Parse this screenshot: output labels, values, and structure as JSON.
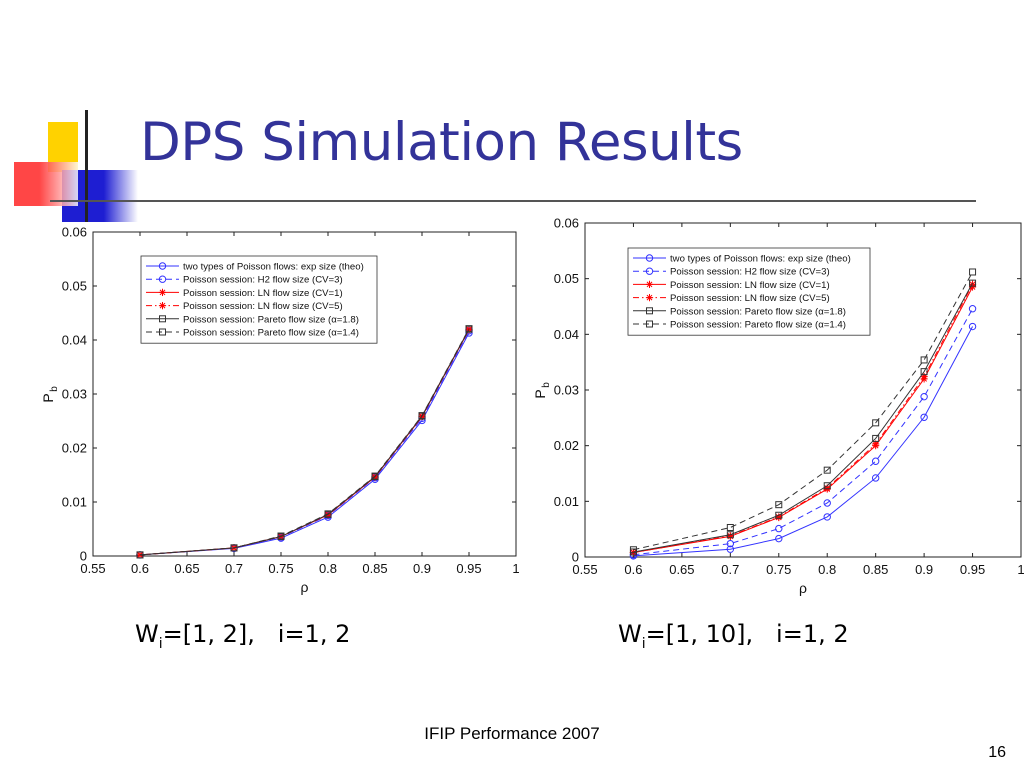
{
  "slide": {
    "title": "DPS Simulation Results",
    "footer": "IFIP Performance 2007",
    "page_number": "16",
    "colors": {
      "title": "#333399",
      "deco_yellow": "#FFD200",
      "deco_blue": "#1E1ED2",
      "deco_red": "#FF3232"
    }
  },
  "captions": [
    {
      "prefix": "W",
      "sub": "i",
      "rest": "=[1, 2],   i=1, 2"
    },
    {
      "prefix": "W",
      "sub": "i",
      "rest": "=[1, 10],   i=1, 2"
    }
  ],
  "chart_data": [
    {
      "type": "line",
      "xlabel": "ρ",
      "ylabel": "P",
      "ylabel_sub": "b",
      "xlim": [
        0.55,
        1
      ],
      "ylim": [
        0,
        0.06
      ],
      "xticks": [
        "0.55",
        "0.6",
        "0.65",
        "0.7",
        "0.75",
        "0.8",
        "0.85",
        "0.9",
        "0.95",
        "1"
      ],
      "yticks": [
        "0",
        "0.01",
        "0.02",
        "0.03",
        "0.04",
        "0.05",
        "0.06"
      ],
      "grid": false,
      "legend_placement": "top-left",
      "x": [
        0.6,
        0.7,
        0.75,
        0.8,
        0.85,
        0.9,
        0.95
      ],
      "series": [
        {
          "name": "two types of Poisson flows: exp size (theo)",
          "color": "#3333ff",
          "dash": "solid",
          "marker": "circle",
          "values": [
            0.0002,
            0.0014,
            0.0033,
            0.0072,
            0.0142,
            0.0251,
            0.0413
          ]
        },
        {
          "name": "Poisson session: H2 flow size (CV=3)",
          "color": "#3333ff",
          "dash": "dashed",
          "marker": "circle",
          "values": [
            0.0002,
            0.0015,
            0.0035,
            0.0075,
            0.0145,
            0.0255,
            0.0417
          ]
        },
        {
          "name": "Poisson session: LN flow size (CV=1)",
          "color": "#ff0000",
          "dash": "solid",
          "marker": "star",
          "values": [
            0.0002,
            0.0015,
            0.0036,
            0.0076,
            0.0146,
            0.0258,
            0.0419
          ]
        },
        {
          "name": "Poisson session: LN flow size (CV=5)",
          "color": "#ff0000",
          "dash": "dashdot",
          "marker": "star",
          "values": [
            0.0002,
            0.0015,
            0.0036,
            0.0077,
            0.0147,
            0.0259,
            0.042
          ]
        },
        {
          "name": "Poisson session: Pareto flow size (α=1.8)",
          "color": "#333333",
          "dash": "solid",
          "marker": "square",
          "values": [
            0.0002,
            0.0015,
            0.0036,
            0.0077,
            0.0147,
            0.0259,
            0.042
          ]
        },
        {
          "name": "Poisson session: Pareto flow size (α=1.4)",
          "color": "#333333",
          "dash": "dashed",
          "marker": "square",
          "values": [
            0.0002,
            0.0015,
            0.0037,
            0.0078,
            0.0148,
            0.026,
            0.0421
          ]
        }
      ]
    },
    {
      "type": "line",
      "xlabel": "ρ",
      "ylabel": "P",
      "ylabel_sub": "b",
      "xlim": [
        0.55,
        1
      ],
      "ylim": [
        0,
        0.06
      ],
      "xticks": [
        "0.55",
        "0.6",
        "0.65",
        "0.7",
        "0.75",
        "0.8",
        "0.85",
        "0.9",
        "0.95",
        "1"
      ],
      "yticks": [
        "0",
        "0.01",
        "0.02",
        "0.03",
        "0.04",
        "0.05",
        "0.06"
      ],
      "grid": false,
      "legend_placement": "top-left",
      "x": [
        0.6,
        0.7,
        0.75,
        0.8,
        0.85,
        0.9,
        0.95
      ],
      "series": [
        {
          "name": "two types of Poisson flows: exp size (theo)",
          "color": "#3333ff",
          "dash": "solid",
          "marker": "circle",
          "values": [
            0.0002,
            0.0014,
            0.0033,
            0.0072,
            0.0142,
            0.0251,
            0.0414
          ]
        },
        {
          "name": "Poisson session: H2 flow size (CV=3)",
          "color": "#3333ff",
          "dash": "dashed",
          "marker": "circle",
          "values": [
            0.0004,
            0.0024,
            0.0051,
            0.0097,
            0.0172,
            0.0288,
            0.0446
          ]
        },
        {
          "name": "Poisson session: LN flow size (CV=1)",
          "color": "#ff0000",
          "dash": "solid",
          "marker": "star",
          "values": [
            0.0008,
            0.0037,
            0.0071,
            0.0122,
            0.02,
            0.032,
            0.0485
          ]
        },
        {
          "name": "Poisson session: LN flow size (CV=5)",
          "color": "#ff0000",
          "dash": "dashdot",
          "marker": "star",
          "values": [
            0.0008,
            0.0038,
            0.0072,
            0.0124,
            0.0203,
            0.0324,
            0.049
          ]
        },
        {
          "name": "Poisson session: Pareto flow size (α=1.8)",
          "color": "#333333",
          "dash": "solid",
          "marker": "square",
          "values": [
            0.0009,
            0.004,
            0.0075,
            0.0128,
            0.0213,
            0.0333,
            0.0492
          ]
        },
        {
          "name": "Poisson session: Pareto flow size (α=1.4)",
          "color": "#333333",
          "dash": "dashed",
          "marker": "square",
          "values": [
            0.0013,
            0.0053,
            0.0094,
            0.0156,
            0.0241,
            0.0354,
            0.0512
          ]
        }
      ]
    }
  ]
}
